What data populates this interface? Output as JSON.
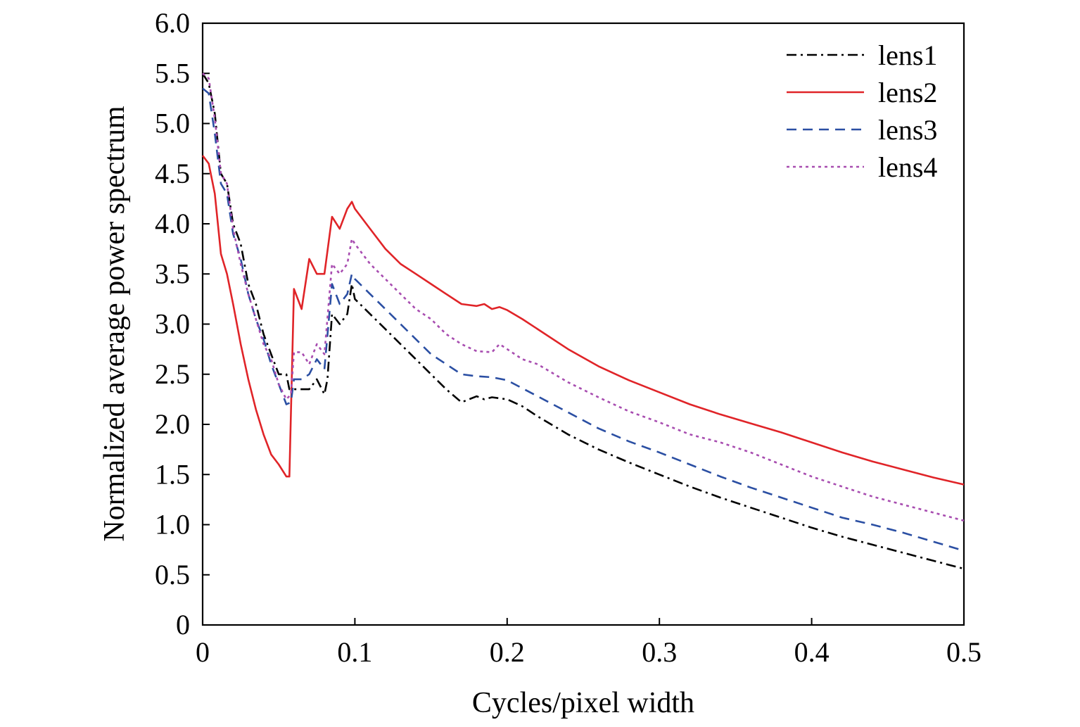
{
  "chart_data": {
    "type": "line",
    "title": "",
    "xlabel": "Cycles/pixel width",
    "ylabel": "Normalized average power spectrum",
    "xlim": [
      0,
      0.5
    ],
    "ylim": [
      0,
      6.0
    ],
    "xticks": [
      0,
      0.1,
      0.2,
      0.3,
      0.4,
      0.5
    ],
    "xtick_labels": [
      "0",
      "0.1",
      "0.2",
      "0.3",
      "0.4",
      "0.5"
    ],
    "yticks": [
      0,
      0.5,
      1.0,
      1.5,
      2.0,
      2.5,
      3.0,
      3.5,
      4.0,
      4.5,
      5.0,
      5.5,
      6.0
    ],
    "ytick_labels": [
      "0",
      "0.5",
      "1.0",
      "1.5",
      "2.0",
      "2.5",
      "3.0",
      "3.5",
      "4.0",
      "4.5",
      "5.0",
      "5.5",
      "6.0"
    ],
    "grid": false,
    "legend_position": "top-right",
    "series": [
      {
        "name": "lens1",
        "color": "#000000",
        "dash": "dash-dot",
        "x": [
          0,
          0.004,
          0.008,
          0.012,
          0.016,
          0.02,
          0.025,
          0.03,
          0.035,
          0.04,
          0.045,
          0.05,
          0.055,
          0.057,
          0.06,
          0.065,
          0.07,
          0.075,
          0.08,
          0.082,
          0.085,
          0.09,
          0.095,
          0.098,
          0.1,
          0.11,
          0.12,
          0.13,
          0.14,
          0.15,
          0.16,
          0.17,
          0.18,
          0.185,
          0.19,
          0.2,
          0.21,
          0.22,
          0.24,
          0.26,
          0.28,
          0.3,
          0.32,
          0.34,
          0.36,
          0.38,
          0.4,
          0.42,
          0.44,
          0.46,
          0.48,
          0.5
        ],
        "y": [
          5.5,
          5.4,
          5.1,
          4.5,
          4.4,
          4.0,
          3.8,
          3.4,
          3.2,
          2.9,
          2.7,
          2.5,
          2.5,
          2.35,
          2.35,
          2.35,
          2.35,
          2.45,
          2.3,
          2.45,
          3.1,
          3.0,
          3.1,
          3.4,
          3.25,
          3.1,
          2.95,
          2.8,
          2.65,
          2.5,
          2.35,
          2.22,
          2.28,
          2.25,
          2.27,
          2.25,
          2.18,
          2.08,
          1.9,
          1.75,
          1.62,
          1.5,
          1.38,
          1.27,
          1.17,
          1.07,
          0.97,
          0.88,
          0.8,
          0.72,
          0.64,
          0.56
        ]
      },
      {
        "name": "lens2",
        "color": "#e02428",
        "dash": "solid",
        "x": [
          0,
          0.004,
          0.008,
          0.012,
          0.016,
          0.02,
          0.025,
          0.03,
          0.035,
          0.04,
          0.045,
          0.05,
          0.055,
          0.057,
          0.06,
          0.065,
          0.07,
          0.075,
          0.08,
          0.085,
          0.09,
          0.095,
          0.098,
          0.1,
          0.11,
          0.12,
          0.13,
          0.14,
          0.15,
          0.16,
          0.17,
          0.18,
          0.185,
          0.19,
          0.195,
          0.2,
          0.21,
          0.22,
          0.24,
          0.26,
          0.28,
          0.3,
          0.32,
          0.34,
          0.36,
          0.38,
          0.4,
          0.42,
          0.44,
          0.46,
          0.48,
          0.5
        ],
        "y": [
          4.68,
          4.6,
          4.3,
          3.7,
          3.5,
          3.2,
          2.8,
          2.45,
          2.15,
          1.9,
          1.7,
          1.6,
          1.48,
          1.48,
          3.35,
          3.15,
          3.65,
          3.5,
          3.5,
          4.07,
          3.95,
          4.15,
          4.22,
          4.15,
          3.95,
          3.75,
          3.6,
          3.5,
          3.4,
          3.3,
          3.2,
          3.18,
          3.2,
          3.15,
          3.17,
          3.14,
          3.05,
          2.95,
          2.75,
          2.58,
          2.44,
          2.32,
          2.2,
          2.1,
          2.01,
          1.92,
          1.82,
          1.72,
          1.63,
          1.55,
          1.47,
          1.4
        ]
      },
      {
        "name": "lens3",
        "color": "#2b4fa3",
        "dash": "dash",
        "x": [
          0,
          0.004,
          0.008,
          0.012,
          0.016,
          0.02,
          0.025,
          0.03,
          0.035,
          0.04,
          0.045,
          0.05,
          0.055,
          0.058,
          0.06,
          0.065,
          0.07,
          0.075,
          0.08,
          0.085,
          0.09,
          0.095,
          0.098,
          0.1,
          0.11,
          0.12,
          0.13,
          0.14,
          0.15,
          0.16,
          0.17,
          0.18,
          0.19,
          0.2,
          0.21,
          0.22,
          0.24,
          0.26,
          0.28,
          0.3,
          0.32,
          0.34,
          0.36,
          0.38,
          0.4,
          0.42,
          0.44,
          0.46,
          0.48,
          0.5
        ],
        "y": [
          5.35,
          5.3,
          4.9,
          4.4,
          4.3,
          3.9,
          3.65,
          3.3,
          3.05,
          2.85,
          2.6,
          2.4,
          2.2,
          2.22,
          2.45,
          2.45,
          2.5,
          2.65,
          2.55,
          3.4,
          3.2,
          3.3,
          3.5,
          3.45,
          3.3,
          3.15,
          3.0,
          2.85,
          2.7,
          2.6,
          2.5,
          2.48,
          2.47,
          2.44,
          2.36,
          2.28,
          2.12,
          1.96,
          1.83,
          1.72,
          1.6,
          1.48,
          1.37,
          1.27,
          1.17,
          1.07,
          1.0,
          0.92,
          0.83,
          0.74
        ]
      },
      {
        "name": "lens4",
        "color": "#a84db0",
        "dash": "dot",
        "x": [
          0,
          0.004,
          0.008,
          0.012,
          0.016,
          0.02,
          0.025,
          0.03,
          0.035,
          0.04,
          0.045,
          0.05,
          0.055,
          0.058,
          0.06,
          0.065,
          0.07,
          0.075,
          0.08,
          0.085,
          0.09,
          0.095,
          0.098,
          0.1,
          0.11,
          0.12,
          0.13,
          0.14,
          0.15,
          0.16,
          0.17,
          0.18,
          0.19,
          0.195,
          0.2,
          0.21,
          0.22,
          0.24,
          0.26,
          0.28,
          0.3,
          0.32,
          0.34,
          0.36,
          0.38,
          0.4,
          0.42,
          0.44,
          0.46,
          0.48,
          0.5
        ],
        "y": [
          5.5,
          5.45,
          5.05,
          4.5,
          4.4,
          3.95,
          3.6,
          3.3,
          3.05,
          2.8,
          2.65,
          2.4,
          2.25,
          2.3,
          2.72,
          2.72,
          2.6,
          2.8,
          2.7,
          3.6,
          3.5,
          3.6,
          3.85,
          3.8,
          3.6,
          3.45,
          3.3,
          3.15,
          3.05,
          2.9,
          2.8,
          2.73,
          2.72,
          2.8,
          2.75,
          2.65,
          2.6,
          2.42,
          2.27,
          2.13,
          2.02,
          1.9,
          1.82,
          1.72,
          1.6,
          1.48,
          1.38,
          1.28,
          1.2,
          1.12,
          1.04
        ]
      }
    ]
  }
}
